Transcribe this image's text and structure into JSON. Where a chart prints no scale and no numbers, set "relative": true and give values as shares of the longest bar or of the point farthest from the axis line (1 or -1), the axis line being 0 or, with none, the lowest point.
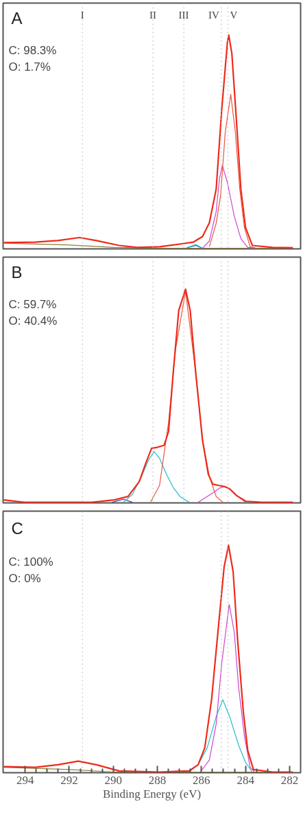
{
  "chart_data": [
    {
      "type": "line",
      "title": "A",
      "relative": true,
      "xlim": [
        295.0,
        281.5
      ],
      "tick_labels": false,
      "line_style": "solid",
      "marker": "none",
      "annotations": [
        "C: 98.3%",
        "O: 1.7%"
      ],
      "ref_lines": [
        {
          "axis": "x",
          "value": 291.4,
          "label": "I",
          "color": "#bbbbbb",
          "line_style": "dotted"
        },
        {
          "axis": "x",
          "value": 288.2,
          "label": "II",
          "color": "#bbbbbb",
          "line_style": "dotted"
        },
        {
          "axis": "x",
          "value": 286.8,
          "label": "III",
          "color": "#bbbbbb",
          "line_style": "dotted"
        },
        {
          "axis": "x",
          "value": 285.1,
          "label": "IV",
          "color": "#bbbbbb",
          "line_style": "dotted"
        },
        {
          "axis": "x",
          "value": 284.8,
          "label": "V",
          "color": "#bbbbbb",
          "line_style": "dotted"
        }
      ],
      "series": [
        {
          "color": "#8b7d3a",
          "x": [
            294.97,
            292.0,
            289.95,
            287.9,
            281.85
          ],
          "values": [
            0.027,
            0.018,
            0.007,
            0.003,
            0.003
          ]
        },
        {
          "color": "#2244aa",
          "x": [
            286.67,
            286.26,
            285.95
          ],
          "values": [
            0.005,
            0.016,
            0.003
          ]
        },
        {
          "color": "#22bbcc",
          "x": [
            286.67,
            286.26,
            285.95
          ],
          "values": [
            0.005,
            0.02,
            0.003
          ]
        },
        {
          "color": "#cc44cc",
          "x": [
            285.95,
            285.64,
            285.33,
            285.18,
            285.05,
            284.82,
            284.51,
            284.21,
            283.9,
            283.5
          ],
          "values": [
            0.003,
            0.037,
            0.175,
            0.33,
            0.39,
            0.31,
            0.153,
            0.048,
            0.007,
            0.003
          ]
        },
        {
          "color": "#e8553e",
          "x": [
            285.64,
            285.33,
            285.13,
            284.92,
            284.67,
            284.46,
            284.26,
            284.05,
            283.79,
            283.5
          ],
          "values": [
            0.01,
            0.12,
            0.25,
            0.545,
            0.723,
            0.545,
            0.28,
            0.1,
            0.01,
            0.003
          ]
        },
        {
          "color": "#ee2a1a",
          "x": [
            294.97,
            293.54,
            292.51,
            291.54,
            290.77,
            289.74,
            288.92,
            287.9,
            286.87,
            286.36,
            285.95,
            285.64,
            285.33,
            285.08,
            284.82,
            284.76,
            284.62,
            284.41,
            284.21,
            284.0,
            283.69,
            282.77,
            281.85
          ],
          "values": [
            0.029,
            0.032,
            0.039,
            0.053,
            0.039,
            0.016,
            0.007,
            0.01,
            0.024,
            0.032,
            0.058,
            0.122,
            0.28,
            0.65,
            0.968,
            1.0,
            0.915,
            0.598,
            0.28,
            0.1,
            0.016,
            0.007,
            0.005
          ]
        }
      ]
    },
    {
      "type": "line",
      "title": "B",
      "relative": true,
      "xlim": [
        295.0,
        281.5
      ],
      "tick_labels": false,
      "line_style": "solid",
      "marker": "none",
      "annotations": [
        "C: 59.7%",
        "O: 40.4%"
      ],
      "ref_lines": [
        {
          "axis": "x",
          "value": 291.4,
          "color": "#bbbbbb",
          "line_style": "dotted"
        },
        {
          "axis": "x",
          "value": 288.2,
          "color": "#bbbbbb",
          "line_style": "dotted"
        },
        {
          "axis": "x",
          "value": 286.8,
          "color": "#bbbbbb",
          "line_style": "dotted"
        },
        {
          "axis": "x",
          "value": 285.1,
          "color": "#bbbbbb",
          "line_style": "dotted"
        },
        {
          "axis": "x",
          "value": 284.8,
          "color": "#bbbbbb",
          "line_style": "dotted"
        }
      ],
      "series": [
        {
          "color": "#2244aa",
          "x": [
            290.05,
            289.54,
            289.13
          ],
          "values": [
            0.003,
            0.017,
            0.003
          ]
        },
        {
          "color": "#22bbcc",
          "x": [
            289.54,
            289.13,
            288.72,
            288.41,
            288.15,
            287.9,
            287.59,
            287.28,
            286.97,
            286.56
          ],
          "values": [
            0.003,
            0.04,
            0.124,
            0.198,
            0.24,
            0.209,
            0.135,
            0.072,
            0.03,
            0.003
          ]
        },
        {
          "color": "#cc44cc",
          "x": [
            286.15,
            285.74,
            285.44,
            285.13,
            284.92,
            284.72,
            284.41,
            284.0
          ],
          "values": [
            0.003,
            0.03,
            0.05,
            0.072,
            0.077,
            0.066,
            0.035,
            0.003
          ]
        },
        {
          "color": "#e8553e",
          "x": [
            288.31,
            287.9,
            287.49,
            287.18,
            286.72,
            286.26,
            285.95,
            285.64,
            285.33,
            285.03
          ],
          "values": [
            0.003,
            0.082,
            0.378,
            0.715,
            0.99,
            0.61,
            0.293,
            0.124,
            0.03,
            0.003
          ]
        },
        {
          "color": "#ee2a1a",
          "x": [
            294.97,
            294.05,
            290.97,
            289.95,
            289.33,
            288.82,
            288.51,
            288.26,
            288.0,
            287.69,
            287.49,
            287.28,
            287.03,
            286.72,
            286.51,
            286.26,
            285.95,
            285.69,
            285.49,
            285.23,
            284.97,
            284.72,
            284.41,
            284.0,
            283.28,
            281.85
          ],
          "values": [
            0.014,
            0.003,
            0.003,
            0.014,
            0.03,
            0.1,
            0.19,
            0.256,
            0.26,
            0.27,
            0.335,
            0.61,
            0.9,
            1.0,
            0.9,
            0.61,
            0.293,
            0.135,
            0.088,
            0.082,
            0.077,
            0.066,
            0.035,
            0.008,
            0.003,
            0.003
          ]
        }
      ]
    },
    {
      "type": "line",
      "title": "C",
      "relative": true,
      "xlim": [
        295.0,
        281.5
      ],
      "xticks": [
        294,
        292,
        290,
        288,
        286,
        284,
        282
      ],
      "xlabel": "Binding Energy (eV)",
      "tick_labels": "x",
      "grid": false,
      "line_style": "solid",
      "marker": "none",
      "annotations": [
        "C: 100%",
        "O: 0%"
      ],
      "ref_lines": [
        {
          "axis": "x",
          "value": 291.4,
          "color": "#bbbbbb",
          "line_style": "dotted"
        },
        {
          "axis": "x",
          "value": 285.1,
          "color": "#bbbbbb",
          "line_style": "dotted"
        },
        {
          "axis": "x",
          "value": 284.8,
          "color": "#bbbbbb",
          "line_style": "dotted"
        }
      ],
      "series": [
        {
          "color": "#8b7d3a",
          "x": [
            294.97,
            292.0,
            289.95,
            281.85
          ],
          "values": [
            0.024,
            0.014,
            0.003,
            0.003
          ]
        },
        {
          "color": "#22bbcc",
          "x": [
            286.56,
            286.15,
            285.74,
            285.33,
            285.03,
            284.72,
            284.31,
            284.0,
            283.69
          ],
          "values": [
            0.003,
            0.035,
            0.109,
            0.247,
            0.321,
            0.247,
            0.12,
            0.046,
            0.003
          ]
        },
        {
          "color": "#cc44cc",
          "x": [
            286.05,
            285.64,
            285.33,
            285.08,
            284.74,
            284.51,
            284.31,
            284.05,
            283.79,
            283.59
          ],
          "values": [
            0.003,
            0.056,
            0.215,
            0.48,
            0.74,
            0.618,
            0.374,
            0.162,
            0.024,
            0.003
          ]
        },
        {
          "color": "#ee2a1a",
          "x": [
            294.97,
            293.54,
            292.51,
            291.59,
            290.77,
            289.74,
            287.9,
            286.56,
            286.15,
            285.85,
            285.54,
            285.23,
            284.97,
            284.77,
            284.56,
            284.36,
            284.1,
            283.9,
            283.64,
            282.77,
            281.85
          ],
          "values": [
            0.027,
            0.024,
            0.035,
            0.051,
            0.035,
            0.008,
            0.003,
            0.008,
            0.035,
            0.109,
            0.321,
            0.64,
            0.905,
            1.0,
            0.883,
            0.586,
            0.268,
            0.099,
            0.014,
            0.003,
            0.003
          ]
        }
      ]
    }
  ]
}
